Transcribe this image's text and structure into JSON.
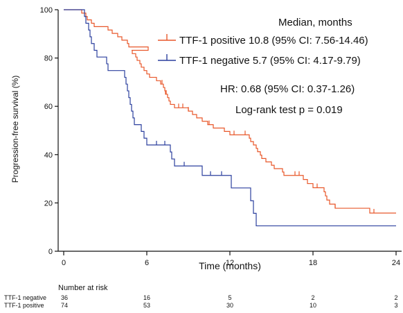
{
  "chart_data": {
    "type": "line",
    "xlabel": "Time (months)",
    "ylabel": "Progression-free survival (%)",
    "xlim": [
      -1,
      24
    ],
    "ylim": [
      0,
      100
    ],
    "xticks": [
      0,
      6,
      12,
      18,
      24
    ],
    "yticks": [
      0,
      20,
      40,
      60,
      80,
      100
    ],
    "annotations": {
      "median_title": "Median, months",
      "hr": "HR: 0.68 (95% CI: 0.37-1.26)",
      "logrank": "Log-rank test p = 0.019"
    },
    "series": [
      {
        "name": "TTF-1 positive",
        "legend_text": "TTF-1 positive   10.8 (95% CI: 7.56-14.46)",
        "color": "#e8572a",
        "steps": [
          [
            0,
            100
          ],
          [
            1.2,
            100
          ],
          [
            1.3,
            98.6
          ],
          [
            1.6,
            97.2
          ],
          [
            1.7,
            95.8
          ],
          [
            2.0,
            94.4
          ],
          [
            2.2,
            93.0
          ],
          [
            3.0,
            93.0
          ],
          [
            3.2,
            91.6
          ],
          [
            3.5,
            90.2
          ],
          [
            3.9,
            88.8
          ],
          [
            4.2,
            87.4
          ],
          [
            4.6,
            86.0
          ],
          [
            4.7,
            84.6
          ],
          [
            6.0,
            84.6
          ],
          [
            6.1,
            83.2
          ],
          [
            4.9,
            83.2
          ],
          [
            4.95,
            81.8
          ],
          [
            5.2,
            80.4
          ],
          [
            5.3,
            79.0
          ],
          [
            5.5,
            77.6
          ],
          [
            5.6,
            76.2
          ],
          [
            5.8,
            74.8
          ],
          [
            6.0,
            73.4
          ],
          [
            6.2,
            72.0
          ],
          [
            6.7,
            70.6
          ],
          [
            7.0,
            69.2
          ],
          [
            7.2,
            67.8
          ],
          [
            7.3,
            66.4
          ],
          [
            7.35,
            65.0
          ],
          [
            7.5,
            63.6
          ],
          [
            7.6,
            62.2
          ],
          [
            7.7,
            60.8
          ],
          [
            8.0,
            59.4
          ],
          [
            9.0,
            58.0
          ],
          [
            9.3,
            56.6
          ],
          [
            9.6,
            55.2
          ],
          [
            10.0,
            53.8
          ],
          [
            10.4,
            52.4
          ],
          [
            10.8,
            51.0
          ],
          [
            11.6,
            49.6
          ],
          [
            12.0,
            48.2
          ],
          [
            13.3,
            48.2
          ],
          [
            13.4,
            46.8
          ],
          [
            13.5,
            45.4
          ],
          [
            13.7,
            44.0
          ],
          [
            13.9,
            42.6
          ],
          [
            14.0,
            41.2
          ],
          [
            14.2,
            39.8
          ],
          [
            14.3,
            38.4
          ],
          [
            14.6,
            37.0
          ],
          [
            15.0,
            35.6
          ],
          [
            15.2,
            34.2
          ],
          [
            15.8,
            32.8
          ],
          [
            15.9,
            31.4
          ],
          [
            17.2,
            31.4
          ],
          [
            17.3,
            29.7
          ],
          [
            17.6,
            28.0
          ],
          [
            18.0,
            26.3
          ],
          [
            18.8,
            24.6
          ],
          [
            18.9,
            22.9
          ],
          [
            19.0,
            21.2
          ],
          [
            19.2,
            19.5
          ],
          [
            19.6,
            17.8
          ],
          [
            22.0,
            17.8
          ],
          [
            22.1,
            15.8
          ],
          [
            24,
            15.8
          ]
        ],
        "censor_x": [
          7.1,
          7.4,
          8.3,
          8.6,
          9.0,
          10.5,
          12.3,
          13.1,
          16.7,
          17.0,
          18.3,
          19.6,
          22.4
        ]
      },
      {
        "name": "TTF-1 negative",
        "legend_text": "TTF-1 negative   5.7 (95% CI: 4.17-9.79)",
        "color": "#2b3f9e",
        "steps": [
          [
            0,
            100
          ],
          [
            1.4,
            100
          ],
          [
            1.5,
            97.2
          ],
          [
            1.6,
            94.4
          ],
          [
            1.8,
            91.6
          ],
          [
            1.9,
            88.8
          ],
          [
            2.0,
            86.0
          ],
          [
            2.2,
            83.2
          ],
          [
            2.4,
            80.4
          ],
          [
            3.0,
            80.4
          ],
          [
            3.1,
            77.6
          ],
          [
            3.2,
            74.8
          ],
          [
            4.3,
            74.8
          ],
          [
            4.4,
            72.0
          ],
          [
            4.5,
            69.2
          ],
          [
            4.6,
            66.4
          ],
          [
            4.7,
            63.6
          ],
          [
            4.8,
            60.8
          ],
          [
            4.9,
            58.0
          ],
          [
            5.0,
            55.2
          ],
          [
            5.1,
            52.4
          ],
          [
            5.5,
            52.4
          ],
          [
            5.6,
            49.6
          ],
          [
            5.8,
            46.8
          ],
          [
            6.0,
            44.0
          ],
          [
            7.6,
            44.0
          ],
          [
            7.7,
            41.1
          ],
          [
            7.8,
            38.2
          ],
          [
            8.0,
            35.3
          ],
          [
            9.9,
            35.3
          ],
          [
            10.0,
            31.4
          ],
          [
            12.0,
            31.4
          ],
          [
            12.1,
            26.2
          ],
          [
            13.4,
            26.2
          ],
          [
            13.5,
            20.9
          ],
          [
            13.7,
            15.7
          ],
          [
            13.9,
            10.5
          ],
          [
            24,
            10.5
          ]
        ],
        "censor_x": [
          6.7,
          7.3,
          8.7,
          10.6,
          11.4
        ]
      }
    ],
    "risk_table": {
      "title": "Number at risk",
      "times": [
        0,
        6,
        12,
        18,
        24
      ],
      "rows": [
        {
          "label": "TTF-1 negative",
          "values": [
            "36",
            "16",
            "5",
            "2",
            "2"
          ]
        },
        {
          "label": "TTF-1 positive",
          "values": [
            "74",
            "53",
            "30",
            "10",
            "3"
          ]
        }
      ]
    }
  }
}
